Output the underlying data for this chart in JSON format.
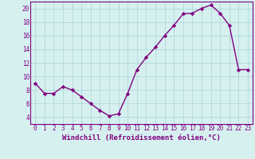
{
  "x": [
    0,
    1,
    2,
    3,
    4,
    5,
    6,
    7,
    8,
    9,
    10,
    11,
    12,
    13,
    14,
    15,
    16,
    17,
    18,
    19,
    20,
    21,
    22,
    23
  ],
  "y": [
    9,
    7.5,
    7.5,
    8.5,
    8,
    7,
    6,
    5,
    4.2,
    4.5,
    7.5,
    11,
    12.8,
    14.3,
    16,
    17.5,
    19.2,
    19.3,
    20,
    20.5,
    19.3,
    17.5,
    11,
    11
  ],
  "line_color": "#800080",
  "marker": "D",
  "marker_size": 2.2,
  "bg_color": "#d6f0f0",
  "grid_color": "#b0d8d8",
  "xlabel": "Windchill (Refroidissement éolien,°C)",
  "xlabel_fontsize": 6.5,
  "xlim": [
    -0.5,
    23.5
  ],
  "ylim": [
    3,
    21
  ],
  "yticks": [
    4,
    6,
    8,
    10,
    12,
    14,
    16,
    18,
    20
  ],
  "xticks": [
    0,
    1,
    2,
    3,
    4,
    5,
    6,
    7,
    8,
    9,
    10,
    11,
    12,
    13,
    14,
    15,
    16,
    17,
    18,
    19,
    20,
    21,
    22,
    23
  ],
  "tick_fontsize": 5.5,
  "line_width": 1.0,
  "spine_color": "#800080"
}
